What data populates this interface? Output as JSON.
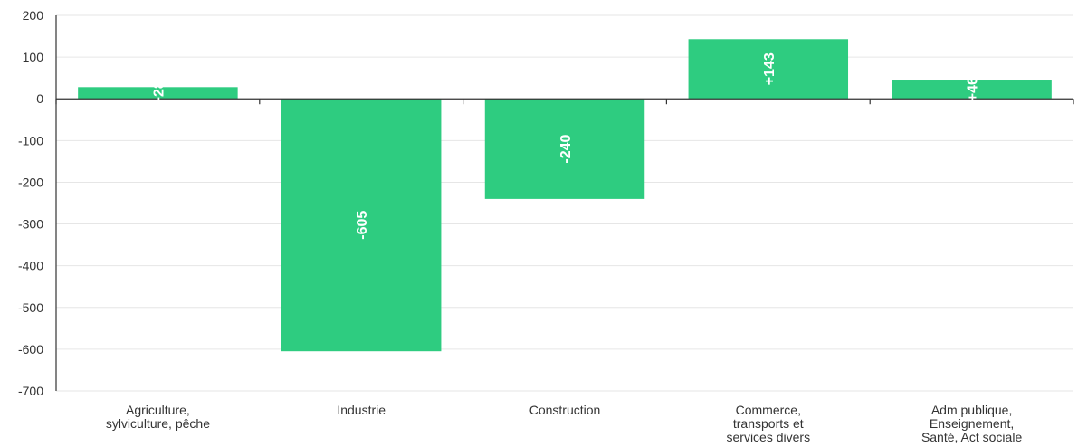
{
  "chart_data": {
    "type": "bar",
    "categories": [
      [
        "Agriculture,",
        "sylviculture, pêche"
      ],
      [
        "Industrie"
      ],
      [
        "Construction"
      ],
      [
        "Commerce,",
        "transports et",
        "services divers"
      ],
      [
        "Adm publique,",
        "Enseignement,",
        "Santé, Act sociale"
      ]
    ],
    "values": [
      28,
      -605,
      -240,
      143,
      46
    ],
    "data_labels": [
      "+28",
      "-605",
      "-240",
      "+143",
      "+46"
    ],
    "ylim": [
      -700,
      200
    ],
    "yticks": [
      200,
      100,
      0,
      -100,
      -200,
      -300,
      -400,
      -500,
      -600,
      -700
    ],
    "grid": true,
    "bar_color": "#2ecc80",
    "title": "",
    "xlabel": "",
    "ylabel": ""
  }
}
